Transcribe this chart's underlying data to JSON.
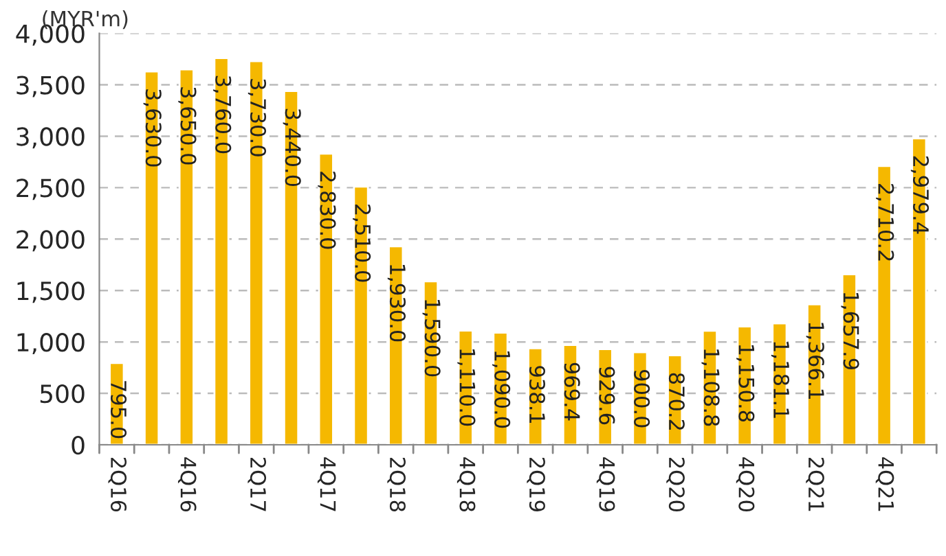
{
  "chart_data": {
    "type": "bar",
    "ylabel": "(MYR'm)",
    "categories": [
      "2Q16",
      null,
      "4Q16",
      null,
      "2Q17",
      null,
      "4Q17",
      null,
      "2Q18",
      null,
      "4Q18",
      null,
      "2Q19",
      null,
      "4Q19",
      null,
      "2Q20",
      null,
      "4Q20",
      null,
      "2Q21",
      null,
      "4Q21",
      null
    ],
    "values": [
      795.0,
      3630.0,
      3650.0,
      3760.0,
      3730.0,
      3440.0,
      2830.0,
      2510.0,
      1930.0,
      1590.0,
      1110.0,
      1090.0,
      938.1,
      969.4,
      929.6,
      900.0,
      870.2,
      1108.8,
      1150.8,
      1181.1,
      1366.1,
      1657.9,
      2710.2,
      2979.4
    ],
    "color": "#f5b800",
    "ylim": [
      0,
      4000
    ],
    "yticks": [
      {
        "value": 0,
        "label": "0"
      },
      {
        "value": 500,
        "label": "500"
      },
      {
        "value": 1000,
        "label": "1,000"
      },
      {
        "value": 1500,
        "label": "1,500"
      },
      {
        "value": 2000,
        "label": "2,000"
      },
      {
        "value": 2500,
        "label": "2,500"
      },
      {
        "value": 3000,
        "label": "3,000"
      },
      {
        "value": 3500,
        "label": "3,500"
      },
      {
        "value": 4000,
        "label": "4,000"
      }
    ],
    "value_labels": [
      "795.0",
      "3,630.0",
      "3,650.0",
      "3,760.0",
      "3,730.0",
      "3,440.0",
      "2,830.0",
      "2,510.0",
      "1,930.0",
      "1,590.0",
      "1,110.0",
      "1,090.0",
      "938.1",
      "969.4",
      "929.6",
      "900.0",
      "870.2",
      "1,108.8",
      "1,150.8",
      "1,181.1",
      "1,366.1",
      "1,657.9",
      "2,710.2",
      "2,979.4"
    ],
    "grid": "y"
  }
}
